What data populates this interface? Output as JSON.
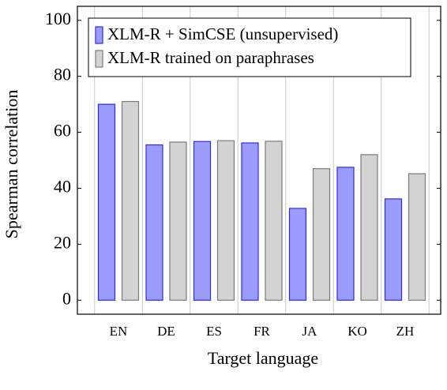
{
  "chart_data": {
    "type": "bar",
    "xlabel": "Target language",
    "ylabel": "Spearman correlation",
    "categories": [
      "EN",
      "DE",
      "ES",
      "FR",
      "JA",
      "KO",
      "ZH"
    ],
    "ylim": [
      -5,
      105
    ],
    "yticks": [
      0,
      20,
      40,
      60,
      80,
      100
    ],
    "grid": "vertical",
    "legend_position": "top-left",
    "series": [
      {
        "name": "XLM-R + SimCSE (unsupervised)",
        "color": "#9c9cff",
        "stroke": "#2a2aff",
        "values": [
          70.0,
          55.5,
          56.7,
          56.2,
          32.8,
          47.5,
          36.2
        ]
      },
      {
        "name": "XLM-R trained on paraphrases",
        "color": "#d3d3d3",
        "stroke": "#7c7c7c",
        "values": [
          71.0,
          56.5,
          57.0,
          56.8,
          47.0,
          52.0,
          45.2
        ]
      }
    ]
  }
}
